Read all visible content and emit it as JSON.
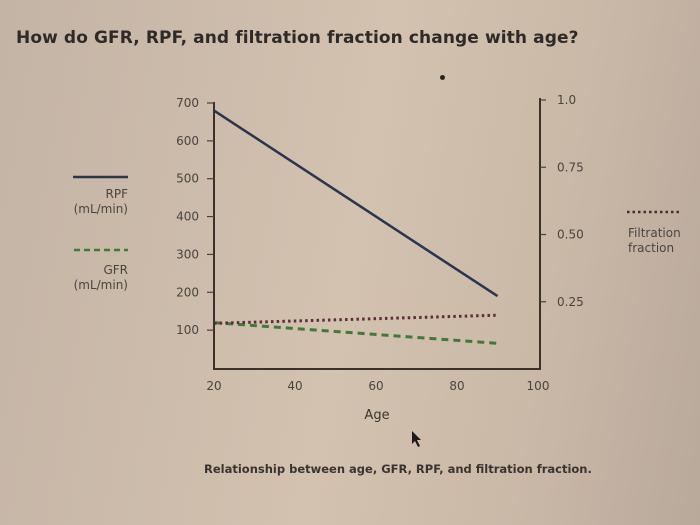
{
  "page": {
    "title": "How do GFR, RPF, and filtration fraction change with age?",
    "caption": "Relationship between age, GFR, RPF, and filtration fraction."
  },
  "chart_data": {
    "type": "line",
    "title": "How do GFR, RPF, and filtration fraction change with age?",
    "caption": "Relationship between age, GFR, RPF, and filtration fraction.",
    "xlabel": "Age",
    "ylabel_left": "",
    "ylabel_right": "",
    "xlim": [
      20,
      100
    ],
    "ylim_left": [
      0,
      700
    ],
    "ylim_right": [
      0,
      1.0
    ],
    "x_ticks": [
      "20",
      "40",
      "60",
      "80",
      "100"
    ],
    "x_tick_values": [
      20,
      40,
      60,
      80,
      100
    ],
    "y_left_ticks": [
      "700",
      "600",
      "500",
      "400",
      "300",
      "200",
      "100"
    ],
    "y_left_tick_values": [
      700,
      600,
      500,
      400,
      300,
      200,
      100
    ],
    "y_right_ticks": [
      "1.0",
      "0.75",
      "0.50",
      "0.25"
    ],
    "y_right_tick_values": [
      1.0,
      0.75,
      0.5,
      0.25
    ],
    "grid": false,
    "series": [
      {
        "name": "RPF (mL/min)",
        "legend_lines": [
          "RPF",
          "(mL/min)"
        ],
        "axis": "left",
        "style": "solid",
        "color": "#2a3550",
        "x": [
          20,
          90
        ],
        "y": [
          680,
          190
        ]
      },
      {
        "name": "GFR (mL/min)",
        "legend_lines": [
          "GFR",
          "(mL/min)"
        ],
        "axis": "left",
        "style": "dashed",
        "color": "#3f7a3a",
        "x": [
          20,
          90
        ],
        "y": [
          120,
          65
        ]
      },
      {
        "name": "Filtration fraction",
        "legend_lines": [
          "Filtration",
          "fraction"
        ],
        "axis": "right",
        "style": "dotted",
        "color": "#5a2e3a",
        "x": [
          20,
          90
        ],
        "y": [
          0.17,
          0.2
        ]
      }
    ],
    "legend_placement": "left and right of plot"
  }
}
